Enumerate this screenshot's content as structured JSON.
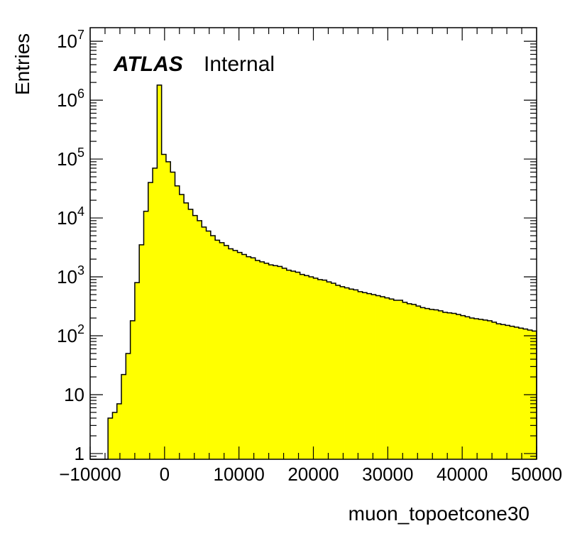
{
  "chart_data": {
    "type": "bar",
    "style": "histogram",
    "xlabel": "muon_topoetcone30",
    "ylabel": "Entries",
    "label_bold": "ATLAS",
    "label_normal": "Internal",
    "log_y": true,
    "xlim": [
      -10000,
      50000
    ],
    "ylim": [
      0.8,
      17000000
    ],
    "bin_width": 600,
    "fill_color": "#ffff00",
    "line_color": "#000000",
    "x_ticks": [
      -10000,
      0,
      10000,
      20000,
      30000,
      40000,
      50000
    ],
    "x_tick_labels": [
      "−10000",
      "0",
      "10000",
      "20000",
      "30000",
      "40000",
      "50000"
    ],
    "y_ticks": [
      {
        "value": 1,
        "base": "1",
        "exp": ""
      },
      {
        "value": 10,
        "base": "10",
        "exp": ""
      },
      {
        "value": 100,
        "base": "10",
        "exp": "2"
      },
      {
        "value": 1000,
        "base": "10",
        "exp": "3"
      },
      {
        "value": 10000,
        "base": "10",
        "exp": "4"
      },
      {
        "value": 100000,
        "base": "10",
        "exp": "5"
      },
      {
        "value": 1000000,
        "base": "10",
        "exp": "6"
      },
      {
        "value": 10000000,
        "base": "10",
        "exp": "7"
      }
    ],
    "bins_start": -10000,
    "values": [
      0,
      0,
      0,
      0,
      4,
      5,
      7,
      22,
      50,
      180,
      800,
      3500,
      13000,
      40000,
      70000,
      1800000,
      120000,
      90000,
      60000,
      35000,
      25000,
      18000,
      14000,
      11000,
      9000,
      7000,
      6000,
      5000,
      4200,
      3800,
      3400,
      3000,
      2800,
      2600,
      2400,
      2200,
      2100,
      1900,
      1800,
      1700,
      1600,
      1550,
      1500,
      1400,
      1300,
      1250,
      1200,
      1100,
      1050,
      1000,
      950,
      900,
      880,
      820,
      780,
      720,
      680,
      650,
      620,
      600,
      560,
      540,
      520,
      500,
      480,
      460,
      440,
      420,
      400,
      400,
      370,
      350,
      340,
      320,
      300,
      290,
      280,
      275,
      265,
      250,
      245,
      240,
      230,
      220,
      210,
      200,
      195,
      190,
      185,
      180,
      170,
      160,
      155,
      150,
      145,
      140,
      135,
      130,
      125,
      120
    ]
  }
}
